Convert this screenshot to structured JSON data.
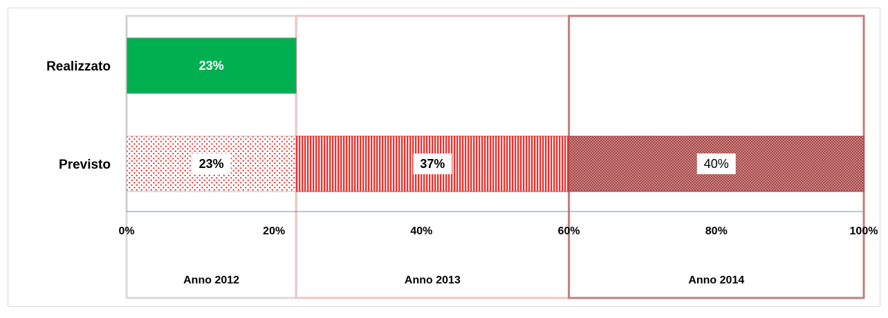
{
  "chart_data": {
    "type": "bar",
    "orientation": "horizontal",
    "stacked": true,
    "categories": [
      "Realizzato",
      "Previsto"
    ],
    "series": [
      {
        "name": "Anno 2012",
        "values": [
          23,
          23
        ],
        "labels": [
          "23%",
          "23%"
        ]
      },
      {
        "name": "Anno 2013",
        "values": [
          0,
          37
        ],
        "labels": [
          "",
          "37%"
        ]
      },
      {
        "name": "Anno 2014",
        "values": [
          0,
          40
        ],
        "labels": [
          "",
          "40%"
        ]
      }
    ],
    "xlim": [
      0,
      100
    ],
    "xticks": [
      0,
      20,
      40,
      60,
      80,
      100
    ],
    "xtick_labels": [
      "0%",
      "20%",
      "40%",
      "60%",
      "80%",
      "100%"
    ],
    "legend_placement": "bottom",
    "grid": false,
    "colors": {
      "realizzato": "#00b050",
      "pattern_red": "#e8332f",
      "pattern_dark": "#a84848",
      "frame_2012": "#d9d9d9",
      "frame_2013": "#eec4c4",
      "frame_2014": "#c27e7e",
      "axis": "#6f8fb0"
    }
  }
}
